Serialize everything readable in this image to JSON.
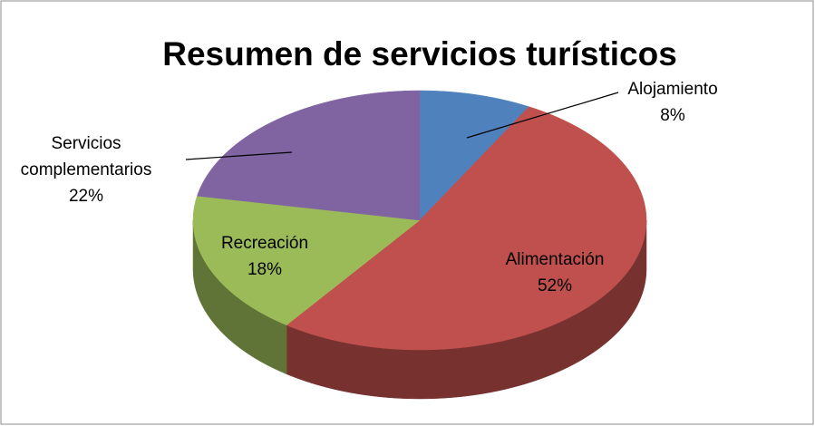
{
  "chart_data": {
    "type": "pie",
    "title": "Resumen de servicios turísticos",
    "categories": [
      "Alojamiento",
      "Alimentación",
      "Recreación",
      "Servicios complementarios"
    ],
    "values": [
      8,
      52,
      18,
      22
    ],
    "value_labels": [
      "8%",
      "52%",
      "18%",
      "22%"
    ],
    "colors": [
      "#4f81bd",
      "#c0504d",
      "#9bbb59",
      "#8064a2"
    ]
  }
}
